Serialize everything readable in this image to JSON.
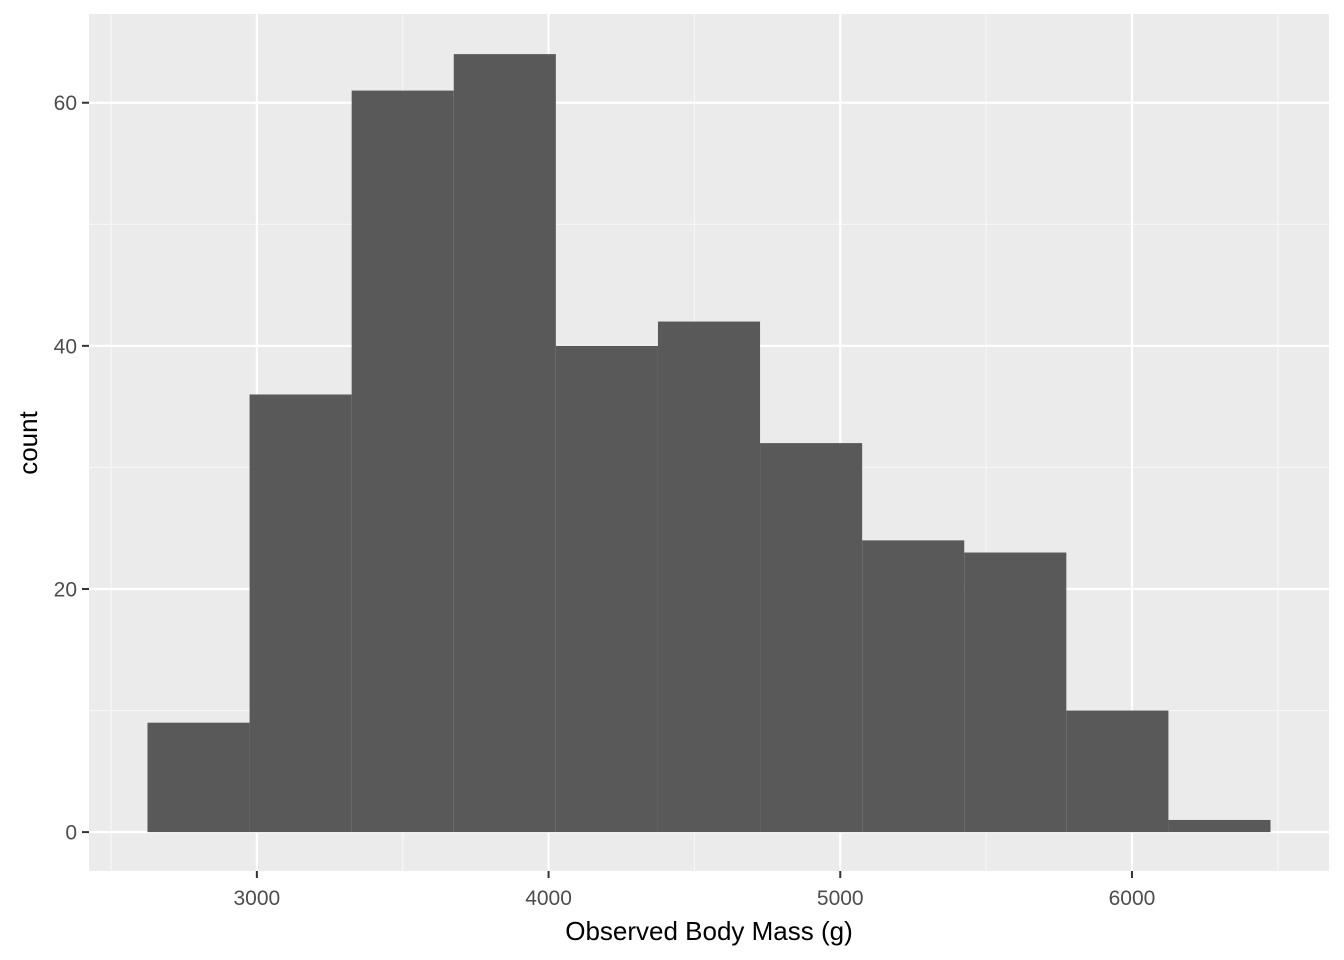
{
  "chart_data": {
    "type": "bar",
    "subtype": "histogram",
    "title": "",
    "xlabel": "Observed Body Mass (g)",
    "ylabel": "count",
    "xlim": [
      2424.5,
      6675.5
    ],
    "ylim": [
      -3.2,
      67.3
    ],
    "x_ticks": [
      {
        "value": 3000,
        "label": "3000"
      },
      {
        "value": 4000,
        "label": "4000"
      },
      {
        "value": 5000,
        "label": "5000"
      },
      {
        "value": 6000,
        "label": "6000"
      }
    ],
    "x_minor_ticks": [
      2500,
      3500,
      4500,
      5500,
      6500
    ],
    "y_ticks": [
      {
        "value": 0,
        "label": "0"
      },
      {
        "value": 20,
        "label": "20"
      },
      {
        "value": 40,
        "label": "40"
      },
      {
        "value": 60,
        "label": "60"
      }
    ],
    "y_minor_ticks": [
      10,
      30,
      50
    ],
    "bins": [
      {
        "x0": 2625,
        "x1": 2975,
        "count": 9
      },
      {
        "x0": 2975,
        "x1": 3325,
        "count": 36
      },
      {
        "x0": 3325,
        "x1": 3675,
        "count": 61
      },
      {
        "x0": 3675,
        "x1": 4025,
        "count": 64
      },
      {
        "x0": 4025,
        "x1": 4375,
        "count": 40
      },
      {
        "x0": 4375,
        "x1": 4725,
        "count": 42
      },
      {
        "x0": 4725,
        "x1": 5075,
        "count": 32
      },
      {
        "x0": 5075,
        "x1": 5425,
        "count": 24
      },
      {
        "x0": 5425,
        "x1": 5775,
        "count": 23
      },
      {
        "x0": 5775,
        "x1": 6125,
        "count": 10
      },
      {
        "x0": 6125,
        "x1": 6475,
        "count": 1
      }
    ],
    "grid": true,
    "legend": "none",
    "colors": {
      "panel_background": "#ebebeb",
      "grid_major": "#ffffff",
      "grid_minor": "#f7f7f7",
      "bar_fill": "#595959",
      "tick_mark": "#333333",
      "tick_label": "#4d4d4d",
      "axis_title": "#000000"
    }
  }
}
